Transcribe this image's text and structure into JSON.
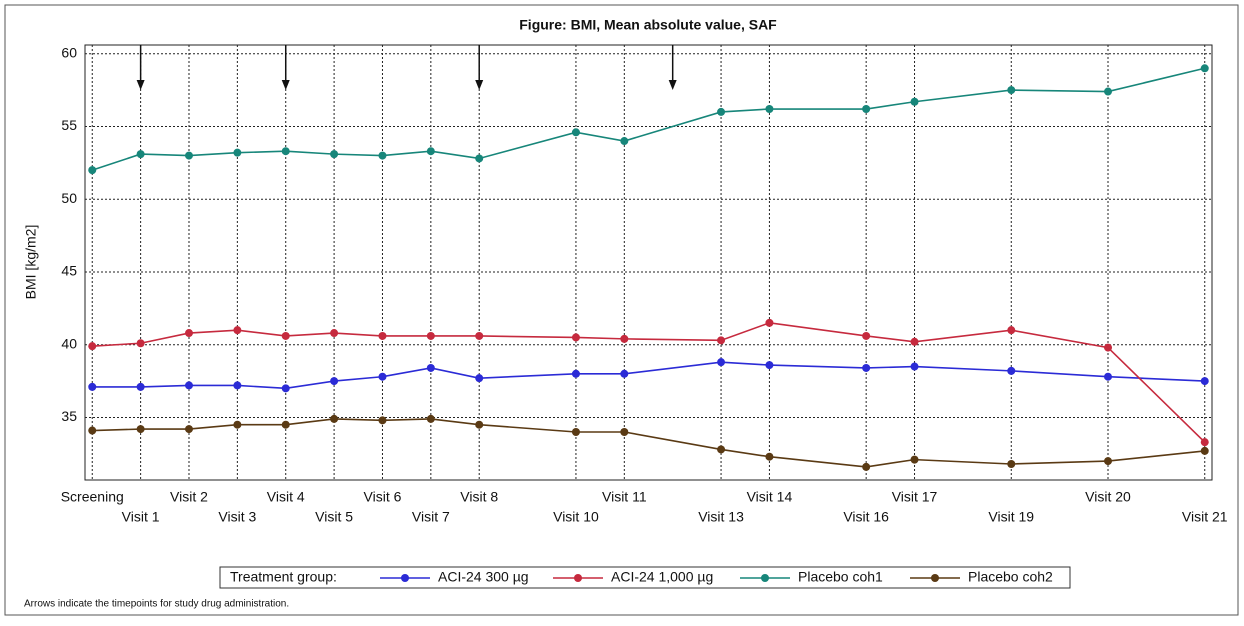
{
  "chart_data": {
    "type": "line",
    "title": "Figure: BMI, Mean absolute value, SAF",
    "y_label": "BMI [kg/m2]",
    "x": [
      0,
      1,
      2,
      3,
      4,
      5,
      6,
      7,
      8,
      10,
      11,
      13,
      14,
      16,
      17,
      19,
      21,
      23
    ],
    "xlim": [
      -0.15,
      23.15
    ],
    "xticks": [
      {
        "value": 0,
        "label": "Screening"
      },
      {
        "value": 1,
        "label": "Visit 1"
      },
      {
        "value": 2,
        "label": "Visit 2"
      },
      {
        "value": 3,
        "label": "Visit 3"
      },
      {
        "value": 4,
        "label": "Visit 4"
      },
      {
        "value": 5,
        "label": "Visit 5"
      },
      {
        "value": 6,
        "label": "Visit 6"
      },
      {
        "value": 7,
        "label": "Visit 7"
      },
      {
        "value": 8,
        "label": "Visit 8"
      },
      {
        "value": 10,
        "label": "Visit 10"
      },
      {
        "value": 11,
        "label": "Visit 11"
      },
      {
        "value": 13,
        "label": "Visit 13"
      },
      {
        "value": 14,
        "label": "Visit 14"
      },
      {
        "value": 16,
        "label": "Visit 16"
      },
      {
        "value": 17,
        "label": "Visit 17"
      },
      {
        "value": 19,
        "label": "Visit 19"
      },
      {
        "value": 21,
        "label": "Visit 20"
      },
      {
        "value": 23,
        "label": "Visit 21"
      }
    ],
    "ylim": [
      30.7,
      60.6
    ],
    "yticks": [
      35,
      40,
      45,
      50,
      55,
      60
    ],
    "grid": true,
    "annotation_arrows": [
      1,
      4,
      8,
      12
    ],
    "legend_title": "Treatment group:",
    "legend_position": "bottom",
    "series": [
      {
        "name": "ACI-24 300 µg",
        "color": "#2b2bd6",
        "values": [
          37.1,
          37.1,
          37.2,
          37.2,
          37.0,
          37.5,
          37.8,
          38.4,
          37.7,
          38.0,
          38.0,
          38.8,
          38.6,
          38.4,
          38.5,
          38.2,
          37.8,
          37.5
        ]
      },
      {
        "name": "ACI-24 1,000 µg",
        "color": "#c62a3e",
        "values": [
          39.9,
          40.1,
          40.8,
          41.0,
          40.6,
          40.8,
          40.6,
          40.6,
          40.6,
          40.5,
          40.4,
          40.3,
          41.5,
          40.6,
          40.2,
          41.0,
          39.8,
          33.3
        ]
      },
      {
        "name": "Placebo coh1",
        "color": "#17867a",
        "values": [
          52.0,
          53.1,
          53.0,
          53.2,
          53.3,
          53.1,
          53.0,
          53.3,
          52.8,
          54.6,
          54.0,
          56.0,
          56.2,
          56.2,
          56.7,
          57.5,
          57.4,
          59.0
        ]
      },
      {
        "name": "Placebo coh2",
        "color": "#5a3a14",
        "values": [
          34.1,
          34.2,
          34.2,
          34.5,
          34.5,
          34.9,
          34.8,
          34.9,
          34.5,
          34.0,
          34.0,
          32.8,
          32.3,
          31.6,
          32.1,
          31.8,
          32.0,
          32.7
        ]
      }
    ],
    "footnote": "Arrows indicate the timepoints for study drug administration."
  }
}
